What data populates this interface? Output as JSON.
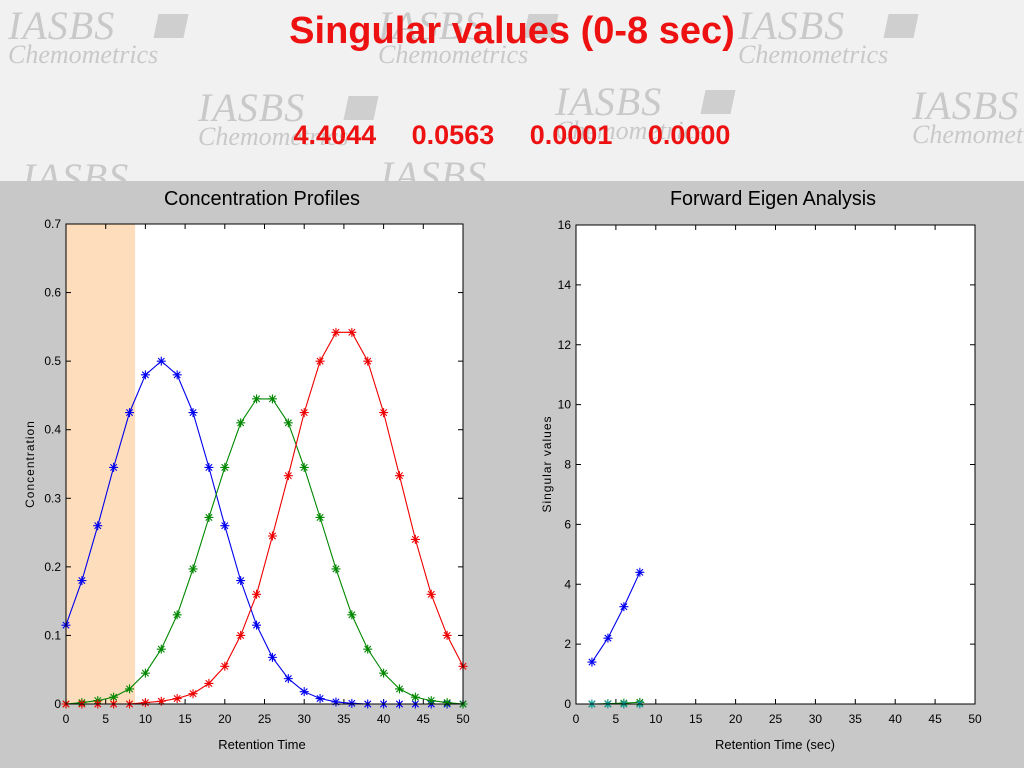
{
  "header": {
    "title": "Singular values  (0-8 sec)",
    "singular_values": [
      "4.4044",
      "0.0563",
      "0.0001",
      "0.0000"
    ],
    "watermark": {
      "line1": "IASBS",
      "line2": "Chemometrics"
    }
  },
  "chart_data": [
    {
      "type": "line",
      "title": "Concentration Profiles",
      "xlabel": "Retention Time",
      "ylabel": "Concentration",
      "xlim": [
        0,
        50
      ],
      "ylim": [
        0,
        0.7
      ],
      "xticks": [
        0,
        5,
        10,
        15,
        20,
        25,
        30,
        35,
        40,
        45,
        50
      ],
      "yticks": [
        0,
        0.1,
        0.2,
        0.3,
        0.4,
        0.5,
        0.6,
        0.7
      ],
      "highlight_window": [
        0,
        8.7
      ],
      "highlight_color": "#fdd9b5",
      "x": [
        0,
        2,
        4,
        6,
        8,
        10,
        12,
        14,
        16,
        18,
        20,
        22,
        24,
        26,
        28,
        30,
        32,
        34,
        36,
        38,
        40,
        42,
        44,
        46,
        48,
        50
      ],
      "series": [
        {
          "color": "#0000ee",
          "values": [
            0.115,
            0.18,
            0.26,
            0.345,
            0.425,
            0.48,
            0.5,
            0.48,
            0.425,
            0.345,
            0.26,
            0.18,
            0.115,
            0.068,
            0.037,
            0.018,
            0.008,
            0.003,
            0.001,
            0.0,
            0.0,
            0.0,
            0.0,
            0.0,
            0.0,
            0.0
          ]
        },
        {
          "color": "#008800",
          "values": [
            0.0,
            0.002,
            0.005,
            0.01,
            0.022,
            0.045,
            0.08,
            0.13,
            0.197,
            0.272,
            0.345,
            0.41,
            0.445,
            0.445,
            0.41,
            0.345,
            0.272,
            0.197,
            0.13,
            0.08,
            0.045,
            0.022,
            0.01,
            0.005,
            0.002,
            0.0
          ]
        },
        {
          "color": "#ee0000",
          "values": [
            0.0,
            0.0,
            0.0,
            0.0,
            0.0,
            0.002,
            0.004,
            0.008,
            0.015,
            0.03,
            0.055,
            0.1,
            0.16,
            0.245,
            0.333,
            0.425,
            0.5,
            0.542,
            0.542,
            0.5,
            0.425,
            0.333,
            0.24,
            0.16,
            0.1,
            0.055
          ]
        }
      ]
    },
    {
      "type": "line",
      "title": "Forward Eigen Analysis",
      "xlabel": "Retention Time (sec)",
      "ylabel": "Singular values",
      "xlim": [
        0,
        50
      ],
      "ylim": [
        0,
        16
      ],
      "xticks": [
        0,
        5,
        10,
        15,
        20,
        25,
        30,
        35,
        40,
        45,
        50
      ],
      "yticks": [
        0,
        2,
        4,
        6,
        8,
        10,
        12,
        14,
        16
      ],
      "x": [
        2,
        4,
        6,
        8
      ],
      "series": [
        {
          "color": "#0000ee",
          "values": [
            1.4,
            2.2,
            3.25,
            4.4
          ]
        },
        {
          "color": "#008800",
          "values": [
            0.0,
            0.01,
            0.03,
            0.056
          ]
        },
        {
          "color": "#ee0000",
          "values": [
            0.0,
            0.0,
            0.0,
            0.0
          ]
        },
        {
          "color": "#00aaaa",
          "values": [
            0.0,
            0.0,
            0.0,
            0.0
          ]
        }
      ]
    }
  ]
}
